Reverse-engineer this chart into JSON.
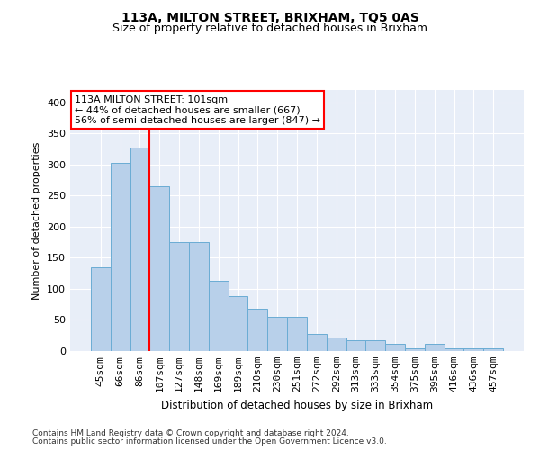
{
  "title1": "113A, MILTON STREET, BRIXHAM, TQ5 0AS",
  "title2": "Size of property relative to detached houses in Brixham",
  "xlabel": "Distribution of detached houses by size in Brixham",
  "ylabel": "Number of detached properties",
  "categories": [
    "45sqm",
    "66sqm",
    "86sqm",
    "107sqm",
    "127sqm",
    "148sqm",
    "169sqm",
    "189sqm",
    "210sqm",
    "230sqm",
    "251sqm",
    "272sqm",
    "292sqm",
    "313sqm",
    "333sqm",
    "354sqm",
    "375sqm",
    "395sqm",
    "416sqm",
    "436sqm",
    "457sqm"
  ],
  "values": [
    135,
    302,
    328,
    265,
    175,
    175,
    113,
    88,
    68,
    55,
    55,
    28,
    22,
    18,
    18,
    12,
    5,
    12,
    4,
    4,
    4
  ],
  "bar_color": "#b8d0ea",
  "bar_edgecolor": "#6aacd4",
  "background_color": "#e8eef8",
  "ylim": [
    0,
    420
  ],
  "yticks": [
    0,
    50,
    100,
    150,
    200,
    250,
    300,
    350,
    400
  ],
  "red_line_x": 2.5,
  "footer1": "Contains HM Land Registry data © Crown copyright and database right 2024.",
  "footer2": "Contains public sector information licensed under the Open Government Licence v3.0.",
  "ann_line1": "113A MILTON STREET: 101sqm",
  "ann_line2": "← 44% of detached houses are smaller (667)",
  "ann_line3": "56% of semi-detached houses are larger (847) →"
}
